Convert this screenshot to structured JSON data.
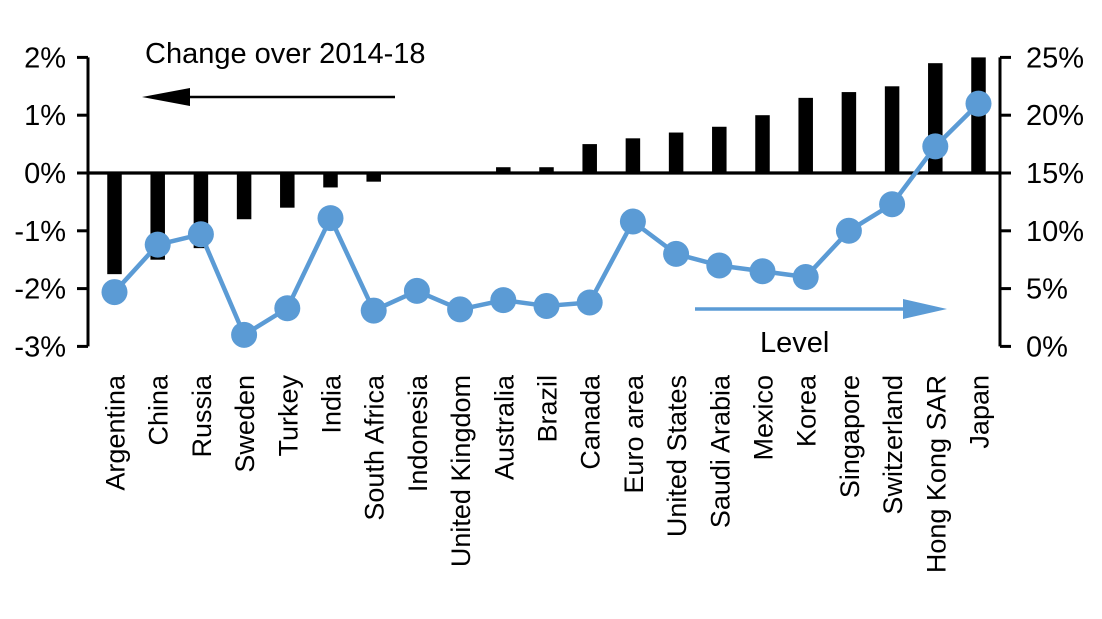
{
  "chart_data": {
    "type": "combo-bar-line",
    "categories": [
      "Argentina",
      "China",
      "Russia",
      "Sweden",
      "Turkey",
      "India",
      "South Africa",
      "Indonesia",
      "United Kingdom",
      "Australia",
      "Brazil",
      "Canada",
      "Euro area",
      "United States",
      "Saudi Arabia",
      "Mexico",
      "Korea",
      "Singapore",
      "Switzerland",
      "Hong Kong SAR",
      "Japan"
    ],
    "series": [
      {
        "name": "Change over 2014-18",
        "type": "bar",
        "axis": "left",
        "values": [
          -1.75,
          -1.5,
          -1.3,
          -0.8,
          -0.6,
          -0.25,
          -0.15,
          0,
          0,
          0.1,
          0.1,
          0.5,
          0.6,
          0.7,
          0.8,
          1.0,
          1.3,
          1.4,
          1.5,
          1.9,
          2.0
        ]
      },
      {
        "name": "Level",
        "type": "line",
        "axis": "right",
        "values": [
          4.7,
          8.8,
          9.7,
          1.0,
          3.3,
          11.1,
          3.1,
          4.8,
          3.2,
          4.0,
          3.5,
          3.8,
          10.8,
          8.0,
          7.0,
          6.5,
          6.0,
          10.0,
          12.3,
          17.3,
          21.0
        ]
      }
    ],
    "left_axis": {
      "min": -3,
      "max": 2,
      "tick_step": 1,
      "tick_labels": [
        "2%",
        "1%",
        "0%",
        "-1%",
        "-2%",
        "-3%"
      ]
    },
    "right_axis": {
      "min": 0,
      "max": 25,
      "tick_step": 5,
      "tick_labels": [
        "25%",
        "20%",
        "15%",
        "10%",
        "5%",
        "0%"
      ]
    },
    "annotations": {
      "bar_series_label": "Change over 2014-18",
      "line_series_label": "Level",
      "bar_arrow_direction": "left",
      "line_arrow_direction": "right"
    },
    "colors": {
      "bar": "#000000",
      "line": "#5B9BD5",
      "text": "#000000",
      "background": "#FFFFFF"
    },
    "grid": false,
    "legend_position": "none"
  }
}
